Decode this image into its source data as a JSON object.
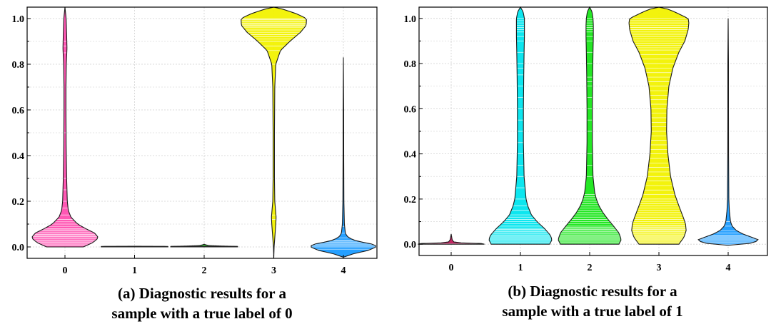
{
  "chart_data": [
    {
      "type": "violin",
      "panel": "a",
      "caption": [
        "(a) Diagnostic results for a",
        "sample with a true label of 0"
      ],
      "categories": [
        "0",
        "1",
        "2",
        "3",
        "4"
      ],
      "yticks": [
        "0.0",
        "0.2",
        "0.4",
        "0.6",
        "0.8",
        "1.0"
      ],
      "ylim": [
        -0.05,
        1.05
      ],
      "grid": true,
      "violins": [
        {
          "category": "0",
          "color": "#ff4fb0",
          "min": 0.0,
          "max": 1.05,
          "halfwidth": 0.48,
          "density": [
            [
              0.0,
              0.55
            ],
            [
              0.02,
              0.85
            ],
            [
              0.04,
              1.0
            ],
            [
              0.06,
              0.9
            ],
            [
              0.08,
              0.62
            ],
            [
              0.1,
              0.38
            ],
            [
              0.13,
              0.18
            ],
            [
              0.16,
              0.1
            ],
            [
              0.2,
              0.07
            ],
            [
              0.3,
              0.05
            ],
            [
              0.45,
              0.035
            ],
            [
              0.6,
              0.03
            ],
            [
              0.7,
              0.03
            ],
            [
              0.8,
              0.04
            ],
            [
              0.87,
              0.06
            ],
            [
              0.93,
              0.05
            ],
            [
              1.0,
              0.035
            ],
            [
              1.05,
              0.0
            ]
          ],
          "lines": [
            0.0,
            0.005,
            0.01,
            0.015,
            0.02,
            0.025,
            0.03,
            0.035,
            0.04,
            0.045,
            0.05,
            0.055,
            0.06,
            0.065,
            0.07,
            0.075,
            0.08,
            0.09,
            0.1,
            0.11,
            0.12,
            0.14,
            0.17,
            0.2,
            0.25,
            0.3,
            0.5,
            0.85,
            0.88,
            0.9
          ]
        },
        {
          "category": "1",
          "color": "#444444",
          "min": 0.0,
          "max": 0.003,
          "halfwidth": 0.48,
          "density": [
            [
              0.0,
              1.0
            ],
            [
              0.001,
              1.0
            ],
            [
              0.002,
              0.9
            ],
            [
              0.003,
              0.0
            ]
          ],
          "lines": []
        },
        {
          "category": "2",
          "color": "#1aa31a",
          "min": 0.0,
          "max": 0.012,
          "halfwidth": 0.48,
          "density": [
            [
              0.0,
              1.0
            ],
            [
              0.002,
              1.0
            ],
            [
              0.004,
              0.5
            ],
            [
              0.006,
              0.15
            ],
            [
              0.009,
              0.05
            ],
            [
              0.012,
              0.0
            ]
          ],
          "lines": [
            0.001,
            0.003
          ]
        },
        {
          "category": "3",
          "color": "#f2f200",
          "min": -0.05,
          "max": 1.05,
          "halfwidth": 0.48,
          "density": [
            [
              -0.05,
              0.0
            ],
            [
              0.0,
              0.01
            ],
            [
              0.1,
              0.06
            ],
            [
              0.13,
              0.07
            ],
            [
              0.2,
              0.03
            ],
            [
              0.3,
              0.02
            ],
            [
              0.5,
              0.02
            ],
            [
              0.7,
              0.03
            ],
            [
              0.8,
              0.06
            ],
            [
              0.86,
              0.2
            ],
            [
              0.9,
              0.48
            ],
            [
              0.94,
              0.8
            ],
            [
              0.97,
              0.97
            ],
            [
              1.0,
              0.98
            ],
            [
              1.02,
              0.7
            ],
            [
              1.04,
              0.3
            ],
            [
              1.05,
              0.0
            ]
          ],
          "lines": [
            0.12,
            0.14,
            0.3,
            0.8,
            0.86,
            0.88,
            0.9,
            0.91,
            0.92,
            0.93,
            0.94,
            0.95,
            0.96,
            0.965,
            0.97,
            0.975,
            0.98,
            0.985,
            0.99,
            0.995,
            1.0
          ]
        },
        {
          "category": "4",
          "color": "#1a9bff",
          "min": -0.045,
          "max": 0.83,
          "halfwidth": 0.48,
          "density": [
            [
              -0.045,
              0.0
            ],
            [
              -0.03,
              0.3
            ],
            [
              -0.015,
              0.75
            ],
            [
              0.0,
              0.98
            ],
            [
              0.01,
              0.95
            ],
            [
              0.02,
              0.6
            ],
            [
              0.03,
              0.3
            ],
            [
              0.045,
              0.12
            ],
            [
              0.06,
              0.06
            ],
            [
              0.1,
              0.03
            ],
            [
              0.2,
              0.015
            ],
            [
              0.4,
              0.01
            ],
            [
              0.6,
              0.008
            ],
            [
              0.83,
              0.0
            ]
          ],
          "lines": [
            -0.01,
            0.0,
            0.005,
            0.01,
            0.015,
            0.02,
            0.025,
            0.03,
            0.04,
            0.06,
            0.09
          ]
        }
      ]
    },
    {
      "type": "violin",
      "panel": "b",
      "caption": [
        "(b) Diagnostic results for a",
        "sample with a true label of 1"
      ],
      "categories": [
        "0",
        "1",
        "2",
        "3",
        "4"
      ],
      "yticks": [
        "0.0",
        "0.2",
        "0.4",
        "0.6",
        "0.8",
        "1.0"
      ],
      "ylim": [
        -0.05,
        1.05
      ],
      "grid": true,
      "violins": [
        {
          "category": "0",
          "color": "#c2185b",
          "min": 0.0,
          "max": 0.045,
          "halfwidth": 0.48,
          "density": [
            [
              0.0,
              1.0
            ],
            [
              0.003,
              0.9
            ],
            [
              0.006,
              0.3
            ],
            [
              0.01,
              0.08
            ],
            [
              0.02,
              0.03
            ],
            [
              0.045,
              0.0
            ]
          ],
          "lines": [
            0.0,
            0.002
          ]
        },
        {
          "category": "1",
          "color": "#00e5ee",
          "min": 0.0,
          "max": 1.05,
          "halfwidth": 0.48,
          "density": [
            [
              0.0,
              0.88
            ],
            [
              0.02,
              0.95
            ],
            [
              0.04,
              0.9
            ],
            [
              0.07,
              0.72
            ],
            [
              0.1,
              0.5
            ],
            [
              0.13,
              0.33
            ],
            [
              0.17,
              0.22
            ],
            [
              0.2,
              0.17
            ],
            [
              0.3,
              0.11
            ],
            [
              0.45,
              0.09
            ],
            [
              0.6,
              0.09
            ],
            [
              0.75,
              0.1
            ],
            [
              0.85,
              0.11
            ],
            [
              0.92,
              0.12
            ],
            [
              0.96,
              0.12
            ],
            [
              1.0,
              0.12
            ],
            [
              1.03,
              0.08
            ],
            [
              1.05,
              0.0
            ]
          ],
          "lines": [
            0.0,
            0.005,
            0.01,
            0.015,
            0.02,
            0.025,
            0.03,
            0.035,
            0.04,
            0.045,
            0.05,
            0.055,
            0.06,
            0.065,
            0.07,
            0.08,
            0.09,
            0.1,
            0.11,
            0.12,
            0.13,
            0.15,
            0.17,
            0.2,
            0.25,
            0.3,
            0.35,
            0.4,
            0.45,
            0.5,
            0.55,
            0.6,
            0.65,
            0.7,
            0.75,
            0.78,
            0.8,
            0.85,
            0.9,
            0.92,
            0.94,
            0.95,
            0.96,
            0.97,
            0.98,
            0.99,
            1.0
          ]
        },
        {
          "category": "2",
          "color": "#19e619",
          "min": 0.0,
          "max": 1.05,
          "halfwidth": 0.48,
          "density": [
            [
              0.0,
              0.88
            ],
            [
              0.02,
              0.95
            ],
            [
              0.05,
              0.88
            ],
            [
              0.08,
              0.72
            ],
            [
              0.11,
              0.55
            ],
            [
              0.14,
              0.4
            ],
            [
              0.17,
              0.28
            ],
            [
              0.2,
              0.2
            ],
            [
              0.23,
              0.15
            ],
            [
              0.3,
              0.1
            ],
            [
              0.45,
              0.08
            ],
            [
              0.6,
              0.08
            ],
            [
              0.75,
              0.09
            ],
            [
              0.85,
              0.1
            ],
            [
              0.92,
              0.11
            ],
            [
              0.97,
              0.11
            ],
            [
              1.0,
              0.1
            ],
            [
              1.03,
              0.07
            ],
            [
              1.05,
              0.0
            ]
          ],
          "lines": [
            0.0,
            0.005,
            0.01,
            0.015,
            0.02,
            0.025,
            0.03,
            0.035,
            0.04,
            0.045,
            0.05,
            0.055,
            0.06,
            0.065,
            0.07,
            0.075,
            0.08,
            0.09,
            0.1,
            0.11,
            0.12,
            0.13,
            0.14,
            0.15,
            0.16,
            0.17,
            0.18,
            0.19,
            0.2,
            0.21,
            0.22,
            0.3,
            0.35,
            0.4,
            0.5,
            0.55,
            0.6,
            0.65,
            0.7,
            0.72,
            0.74,
            0.8,
            0.85,
            0.9,
            0.92,
            0.94,
            0.95,
            0.96,
            0.97,
            0.98,
            0.99,
            1.0
          ]
        },
        {
          "category": "3",
          "color": "#f2f200",
          "min": 0.0,
          "max": 1.05,
          "halfwidth": 0.48,
          "density": [
            [
              0.0,
              0.6
            ],
            [
              0.03,
              0.75
            ],
            [
              0.06,
              0.82
            ],
            [
              0.09,
              0.8
            ],
            [
              0.12,
              0.73
            ],
            [
              0.17,
              0.6
            ],
            [
              0.22,
              0.48
            ],
            [
              0.3,
              0.35
            ],
            [
              0.4,
              0.27
            ],
            [
              0.5,
              0.23
            ],
            [
              0.6,
              0.24
            ],
            [
              0.7,
              0.3
            ],
            [
              0.78,
              0.42
            ],
            [
              0.85,
              0.6
            ],
            [
              0.9,
              0.78
            ],
            [
              0.95,
              0.88
            ],
            [
              0.98,
              0.9
            ],
            [
              1.0,
              0.88
            ],
            [
              1.02,
              0.6
            ],
            [
              1.04,
              0.3
            ],
            [
              1.05,
              0.0
            ]
          ],
          "lines": [
            0.0,
            0.005,
            0.01,
            0.015,
            0.02,
            0.025,
            0.03,
            0.035,
            0.04,
            0.045,
            0.05,
            0.055,
            0.06,
            0.065,
            0.07,
            0.075,
            0.08,
            0.085,
            0.09,
            0.1,
            0.11,
            0.12,
            0.13,
            0.14,
            0.15,
            0.16,
            0.17,
            0.18,
            0.19,
            0.2,
            0.22,
            0.24,
            0.26,
            0.28,
            0.3,
            0.32,
            0.34,
            0.36,
            0.38,
            0.4,
            0.42,
            0.44,
            0.46,
            0.48,
            0.5,
            0.52,
            0.54,
            0.56,
            0.58,
            0.6,
            0.62,
            0.64,
            0.66,
            0.68,
            0.7,
            0.72,
            0.74,
            0.76,
            0.78,
            0.8,
            0.82,
            0.84,
            0.86,
            0.87,
            0.88,
            0.89,
            0.9,
            0.91,
            0.92,
            0.93,
            0.94,
            0.95,
            0.96,
            0.97,
            0.98,
            0.99,
            1.0
          ]
        },
        {
          "category": "4",
          "color": "#1a9bff",
          "min": -0.005,
          "max": 1.0,
          "halfwidth": 0.48,
          "density": [
            [
              -0.005,
              0.0
            ],
            [
              0.0,
              0.55
            ],
            [
              0.01,
              0.82
            ],
            [
              0.02,
              0.9
            ],
            [
              0.03,
              0.72
            ],
            [
              0.045,
              0.45
            ],
            [
              0.06,
              0.25
            ],
            [
              0.08,
              0.12
            ],
            [
              0.1,
              0.07
            ],
            [
              0.15,
              0.035
            ],
            [
              0.2,
              0.02
            ],
            [
              0.4,
              0.012
            ],
            [
              0.6,
              0.01
            ],
            [
              0.8,
              0.01
            ],
            [
              1.0,
              0.0
            ]
          ],
          "lines": [
            0.0,
            0.005,
            0.01,
            0.015,
            0.02,
            0.025,
            0.03,
            0.035,
            0.04,
            0.05,
            0.06,
            0.08,
            0.1
          ]
        }
      ]
    }
  ]
}
